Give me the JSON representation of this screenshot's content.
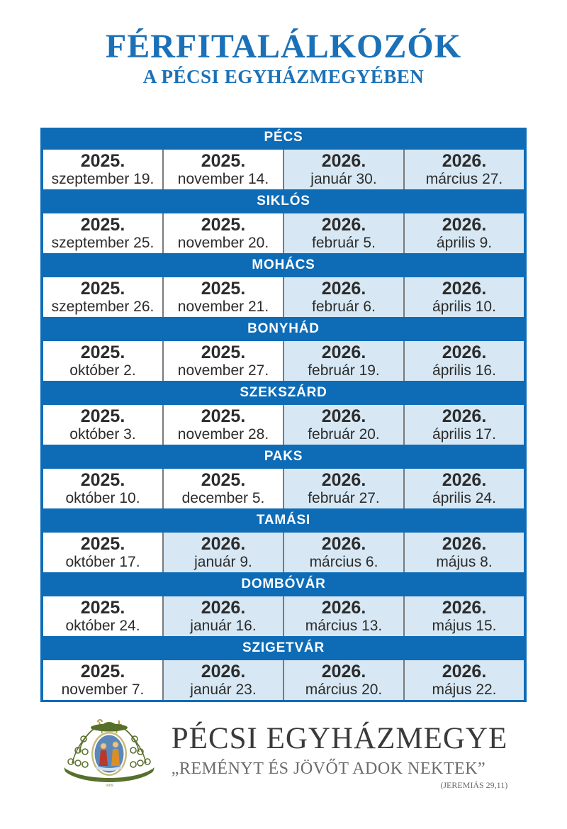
{
  "title": "FÉRFITALÁLKOZÓK",
  "subtitle": "A PÉCSI EGYHÁZMEGYÉBEN",
  "colors": {
    "header_blue": "#0e6cb7",
    "title_blue": "#1b71b7",
    "highlight_cell_blue": "#d7e8f4",
    "plain_cell_white": "#ffffff",
    "date_text": "#2c2c2c",
    "footer_gray": "#6a6c6c"
  },
  "schedule": [
    {
      "city": "PÉCS",
      "dates": [
        {
          "year": "2025.",
          "day": "szeptember 19.",
          "highlight": false
        },
        {
          "year": "2025.",
          "day": "november 14.",
          "highlight": false
        },
        {
          "year": "2026.",
          "day": "január 30.",
          "highlight": true
        },
        {
          "year": "2026.",
          "day": "március 27.",
          "highlight": true
        }
      ]
    },
    {
      "city": "SIKLÓS",
      "dates": [
        {
          "year": "2025.",
          "day": "szeptember 25.",
          "highlight": false
        },
        {
          "year": "2025.",
          "day": "november 20.",
          "highlight": false
        },
        {
          "year": "2026.",
          "day": "február 5.",
          "highlight": true
        },
        {
          "year": "2026.",
          "day": "április 9.",
          "highlight": true
        }
      ]
    },
    {
      "city": "MOHÁCS",
      "dates": [
        {
          "year": "2025.",
          "day": "szeptember 26.",
          "highlight": false
        },
        {
          "year": "2025.",
          "day": "november 21.",
          "highlight": false
        },
        {
          "year": "2026.",
          "day": "február 6.",
          "highlight": true
        },
        {
          "year": "2026.",
          "day": "április 10.",
          "highlight": true
        }
      ]
    },
    {
      "city": "BONYHÁD",
      "dates": [
        {
          "year": "2025.",
          "day": "október 2.",
          "highlight": false
        },
        {
          "year": "2025.",
          "day": "november 27.",
          "highlight": false
        },
        {
          "year": "2026.",
          "day": "február 19.",
          "highlight": true
        },
        {
          "year": "2026.",
          "day": "április 16.",
          "highlight": true
        }
      ]
    },
    {
      "city": "SZEKSZÁRD",
      "dates": [
        {
          "year": "2025.",
          "day": "október 3.",
          "highlight": false
        },
        {
          "year": "2025.",
          "day": "november 28.",
          "highlight": false
        },
        {
          "year": "2026.",
          "day": "február 20.",
          "highlight": true
        },
        {
          "year": "2026.",
          "day": "április 17.",
          "highlight": true
        }
      ]
    },
    {
      "city": "PAKS",
      "dates": [
        {
          "year": "2025.",
          "day": "október 10.",
          "highlight": false
        },
        {
          "year": "2025.",
          "day": "december 5.",
          "highlight": false
        },
        {
          "year": "2026.",
          "day": "február 27.",
          "highlight": true
        },
        {
          "year": "2026.",
          "day": "április 24.",
          "highlight": true
        }
      ]
    },
    {
      "city": "TAMÁSI",
      "dates": [
        {
          "year": "2025.",
          "day": "október 17.",
          "highlight": false
        },
        {
          "year": "2026.",
          "day": "január 9.",
          "highlight": true
        },
        {
          "year": "2026.",
          "day": "március 6.",
          "highlight": true
        },
        {
          "year": "2026.",
          "day": "május 8.",
          "highlight": true
        }
      ]
    },
    {
      "city": "DOMBÓVÁR",
      "dates": [
        {
          "year": "2025.",
          "day": "október 24.",
          "highlight": false
        },
        {
          "year": "2026.",
          "day": "január 16.",
          "highlight": true
        },
        {
          "year": "2026.",
          "day": "március 13.",
          "highlight": true
        },
        {
          "year": "2026.",
          "day": "május 15.",
          "highlight": true
        }
      ]
    },
    {
      "city": "SZIGETVÁR",
      "dates": [
        {
          "year": "2025.",
          "day": "november 7.",
          "highlight": false
        },
        {
          "year": "2026.",
          "day": "január 23.",
          "highlight": true
        },
        {
          "year": "2026.",
          "day": "március 20.",
          "highlight": true
        },
        {
          "year": "2026.",
          "day": "május 22.",
          "highlight": true
        }
      ]
    }
  ],
  "footer": {
    "org": "PÉCSI EGYHÁZMEGYE",
    "quote": "„REMÉNYT ÉS JÖVŐT ADOK NEKTEK”",
    "reference": "(JEREMIÁS 29,11)",
    "logo": {
      "anno": "ANNO DOMINI",
      "year": "1009"
    }
  }
}
